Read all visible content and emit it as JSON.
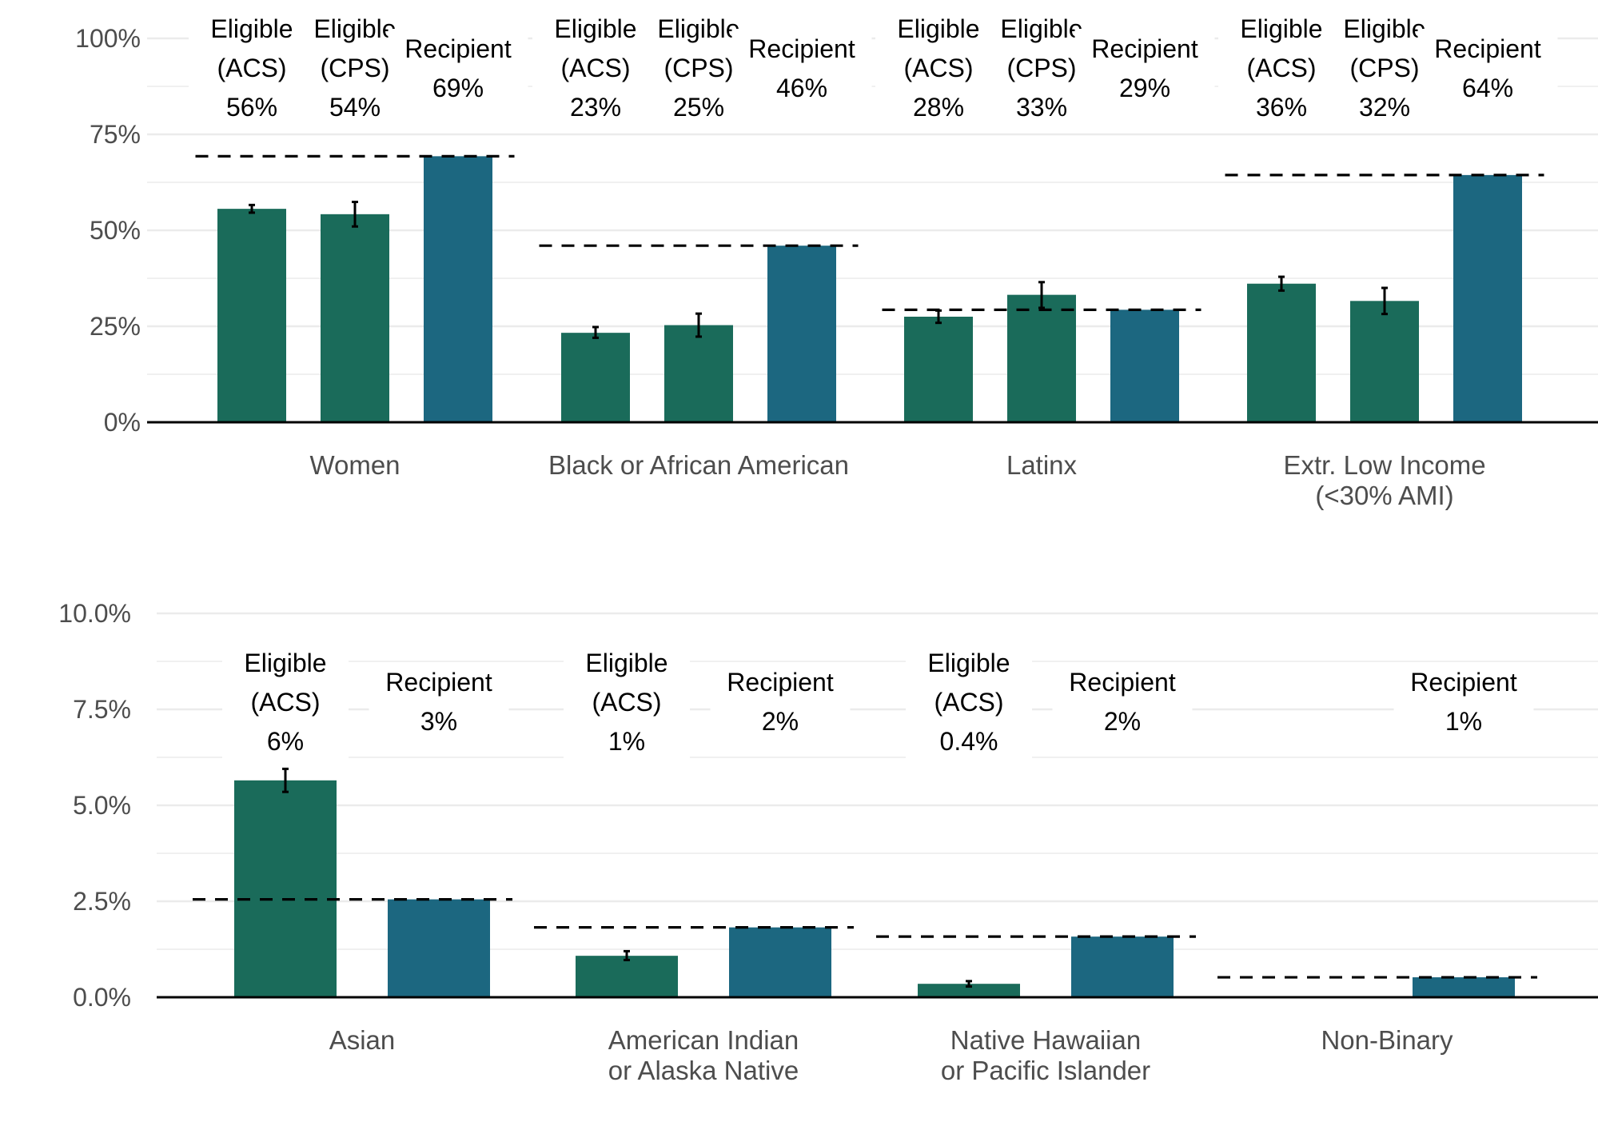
{
  "chart_data": [
    {
      "type": "bar",
      "ylim": [
        0,
        100
      ],
      "y_ticks": [
        "0%",
        "25%",
        "50%",
        "75%",
        "100%"
      ],
      "grid": true,
      "groups": [
        {
          "category": [
            "Women"
          ],
          "bars": [
            {
              "label": [
                "Eligible",
                "(ACS)",
                "56%"
              ],
              "value": 55.6,
              "err_low": 54.6,
              "err_high": 56.6,
              "kind": "eligible"
            },
            {
              "label": [
                "Eligible",
                "(CPS)",
                "54%"
              ],
              "value": 54.2,
              "err_low": 51.0,
              "err_high": 57.4,
              "kind": "eligible"
            },
            {
              "label": [
                "Recipient",
                "69%"
              ],
              "value": 69.3,
              "kind": "recipient"
            }
          ],
          "reference": 69.3
        },
        {
          "category": [
            "Black or African American"
          ],
          "bars": [
            {
              "label": [
                "Eligible",
                "(ACS)",
                "23%"
              ],
              "value": 23.3,
              "err_low": 22.0,
              "err_high": 24.8,
              "kind": "eligible"
            },
            {
              "label": [
                "Eligible",
                "(CPS)",
                "25%"
              ],
              "value": 25.3,
              "err_low": 22.3,
              "err_high": 28.3,
              "kind": "eligible"
            },
            {
              "label": [
                "Recipient",
                "46%"
              ],
              "value": 46.0,
              "kind": "recipient"
            }
          ],
          "reference": 46.0
        },
        {
          "category": [
            "Latinx"
          ],
          "bars": [
            {
              "label": [
                "Eligible",
                "(ACS)",
                "28%"
              ],
              "value": 27.5,
              "err_low": 25.9,
              "err_high": 29.1,
              "kind": "eligible"
            },
            {
              "label": [
                "Eligible",
                "(CPS)",
                "33%"
              ],
              "value": 33.2,
              "err_low": 29.8,
              "err_high": 36.5,
              "kind": "eligible"
            },
            {
              "label": [
                "Recipient",
                "29%"
              ],
              "value": 29.3,
              "kind": "recipient"
            }
          ],
          "reference": 29.3
        },
        {
          "category": [
            "Extr. Low Income",
            "(<30% AMI)"
          ],
          "bars": [
            {
              "label": [
                "Eligible",
                "(ACS)",
                "36%"
              ],
              "value": 36.1,
              "err_low": 34.3,
              "err_high": 37.9,
              "kind": "eligible"
            },
            {
              "label": [
                "Eligible",
                "(CPS)",
                "32%"
              ],
              "value": 31.6,
              "err_low": 28.2,
              "err_high": 35.0,
              "kind": "eligible"
            },
            {
              "label": [
                "Recipient",
                "64%"
              ],
              "value": 64.4,
              "kind": "recipient"
            }
          ],
          "reference": 64.4
        }
      ]
    },
    {
      "type": "bar",
      "ylim": [
        0,
        10
      ],
      "y_ticks": [
        "0.0%",
        "2.5%",
        "5.0%",
        "7.5%",
        "10.0%"
      ],
      "grid": true,
      "groups": [
        {
          "category": [
            "Asian"
          ],
          "bars": [
            {
              "label": [
                "Eligible",
                "(ACS)",
                "6%"
              ],
              "value": 5.65,
              "err_low": 5.35,
              "err_high": 5.95,
              "kind": "eligible"
            },
            {
              "label": [
                "Recipient",
                "3%"
              ],
              "value": 2.55,
              "kind": "recipient"
            }
          ],
          "reference": 2.55
        },
        {
          "category": [
            "American Indian",
            "or Alaska Native"
          ],
          "bars": [
            {
              "label": [
                "Eligible",
                "(ACS)",
                "1%"
              ],
              "value": 1.08,
              "err_low": 0.97,
              "err_high": 1.2,
              "kind": "eligible"
            },
            {
              "label": [
                "Recipient",
                "2%"
              ],
              "value": 1.82,
              "kind": "recipient"
            }
          ],
          "reference": 1.82
        },
        {
          "category": [
            "Native Hawaiian",
            "or Pacific Islander"
          ],
          "bars": [
            {
              "label": [
                "Eligible",
                "(ACS)",
                "0.4%"
              ],
              "value": 0.35,
              "err_low": 0.28,
              "err_high": 0.42,
              "kind": "eligible"
            },
            {
              "label": [
                "Recipient",
                "2%"
              ],
              "value": 1.58,
              "kind": "recipient"
            }
          ],
          "reference": 1.58
        },
        {
          "category": [
            "Non-Binary"
          ],
          "bars": [
            {
              "label": [
                "Recipient",
                "1%"
              ],
              "value": 0.52,
              "kind": "recipient"
            }
          ],
          "reference": 0.52
        }
      ]
    }
  ],
  "colors": {
    "eligible": "#1a6b5a",
    "recipient": "#1c6780",
    "grid": "#ebebeb",
    "axis": "#000000",
    "error_bar": "#000000",
    "reference_line": "#000000"
  }
}
